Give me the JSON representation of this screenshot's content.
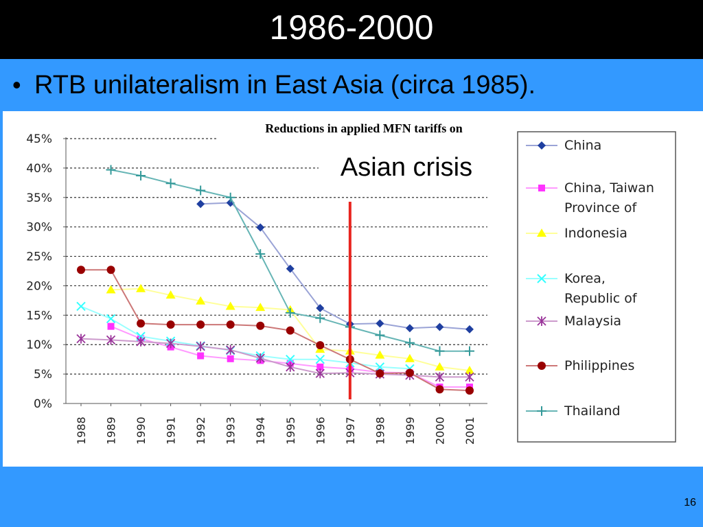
{
  "slide": {
    "title": "1986-2000",
    "bullet": "RTB unilateralism in East Asia (circa 1985).",
    "page_number": "16"
  },
  "colors": {
    "title_bg": "#000000",
    "slide_bg": "#3399ff",
    "marker_line": "#e8251f"
  },
  "chart_data": {
    "type": "line",
    "title": "Reductions in applied MFN tariffs on",
    "annotation": "Asian crisis",
    "annotation_year": "1997",
    "x": [
      "1988",
      "1989",
      "1990",
      "1991",
      "1992",
      "1993",
      "1994",
      "1995",
      "1996",
      "1997",
      "1998",
      "1999",
      "2000",
      "2001"
    ],
    "ylim": [
      0,
      45
    ],
    "yticks": [
      {
        "value": 0,
        "label": "0%"
      },
      {
        "value": 5,
        "label": "5%"
      },
      {
        "value": 10,
        "label": "10%"
      },
      {
        "value": 15,
        "label": "15%"
      },
      {
        "value": 20,
        "label": "20%"
      },
      {
        "value": 25,
        "label": "25%"
      },
      {
        "value": 30,
        "label": "30%"
      },
      {
        "value": 35,
        "label": "35%"
      },
      {
        "value": 40,
        "label": "40%"
      },
      {
        "value": 45,
        "label": "45%"
      }
    ],
    "grid": true,
    "legend_position": "right",
    "series": [
      {
        "name": "China",
        "color": "#1f3fa0",
        "line_color": "#9aa3d6",
        "marker": "diamond",
        "values": [
          null,
          null,
          null,
          null,
          33.9,
          34.1,
          29.9,
          22.9,
          16.2,
          13.5,
          13.6,
          12.8,
          13.0,
          12.6
        ]
      },
      {
        "name": "China, Taiwan Province of",
        "color": "#ff33ff",
        "line_color": "#ff99ff",
        "marker": "square",
        "values": [
          null,
          13.1,
          11.0,
          9.6,
          8.1,
          7.6,
          7.3,
          6.8,
          6.2,
          5.9,
          5.3,
          5.2,
          2.8,
          2.8
        ]
      },
      {
        "name": "Indonesia",
        "color": "#ffff00",
        "line_color": "#ffff99",
        "marker": "triangle",
        "values": [
          null,
          19.3,
          19.5,
          18.4,
          17.4,
          16.5,
          16.3,
          15.9,
          9.2,
          8.9,
          8.2,
          7.6,
          6.2,
          5.6
        ]
      },
      {
        "name": "Korea, Republic of",
        "color": "#33ffff",
        "line_color": "#99ffff",
        "marker": "x",
        "values": [
          16.5,
          14.4,
          11.4,
          10.6,
          9.8,
          9.0,
          8.1,
          7.5,
          7.5,
          6.9,
          6.2,
          5.9,
          null,
          null
        ]
      },
      {
        "name": "Malaysia",
        "color": "#993399",
        "line_color": "#cc99cc",
        "marker": "asterisk",
        "values": [
          11.0,
          10.8,
          10.5,
          10.2,
          9.7,
          9.1,
          7.7,
          6.2,
          5.1,
          5.2,
          5.0,
          4.8,
          4.5,
          4.5
        ]
      },
      {
        "name": "Philippines",
        "color": "#990000",
        "line_color": "#cc7777",
        "marker": "circle",
        "values": [
          22.7,
          22.7,
          13.6,
          13.4,
          13.4,
          13.4,
          13.2,
          12.4,
          9.9,
          7.5,
          5.1,
          5.2,
          2.4,
          2.2
        ]
      },
      {
        "name": "Thailand",
        "color": "#339999",
        "line_color": "#66b5b5",
        "marker": "plus",
        "values": [
          null,
          39.7,
          38.7,
          37.4,
          36.2,
          35.0,
          25.4,
          15.4,
          14.5,
          13.0,
          11.6,
          10.3,
          8.9,
          8.9
        ]
      }
    ],
    "legend_labels": [
      [
        "China"
      ],
      [
        "China, Taiwan",
        "Province of"
      ],
      [
        "Indonesia"
      ],
      [
        "Korea,",
        "Republic of"
      ],
      [
        "Malaysia"
      ],
      [
        "Philippines"
      ],
      [
        "Thailand"
      ]
    ]
  }
}
